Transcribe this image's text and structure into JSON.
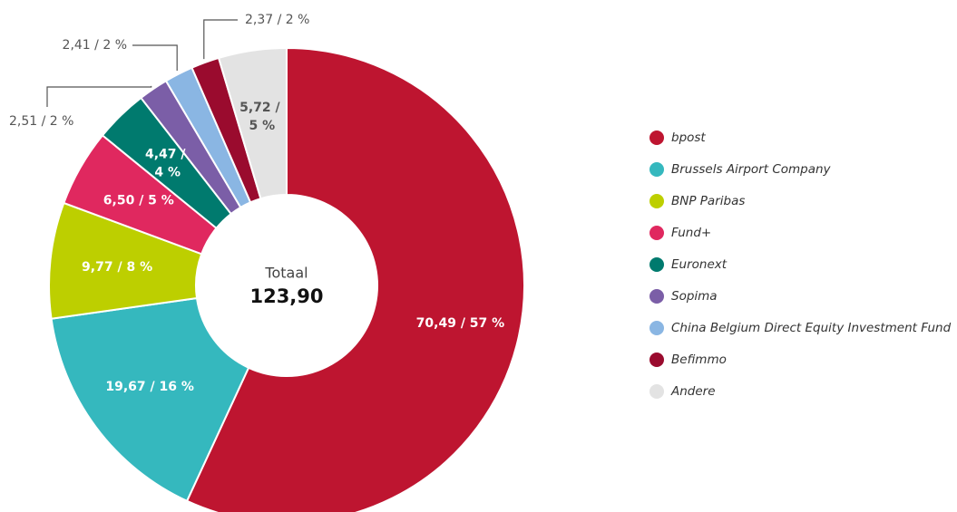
{
  "chart_data": {
    "type": "pie",
    "center_label": "Totaal",
    "total": "123,90",
    "categories": [
      "bpost",
      "Brussels Airport Company",
      "BNP Paribas",
      "Fund+",
      "Euronext",
      "Sopima",
      "China Belgium Direct Equity Investment Fund",
      "Befimmo",
      "Andere"
    ],
    "values": [
      70.49,
      19.67,
      9.77,
      6.5,
      4.47,
      2.51,
      2.41,
      2.37,
      5.72
    ],
    "value_labels": [
      "70,49 / 57 %",
      "19,67 / 16 %",
      "9,77 / 8 %",
      "6,50 / 5 %",
      "4,47 / 4 %",
      "2,51 / 2 %",
      "2,41 / 2 %",
      "2,37 / 2 %",
      "5,72 / 5 %"
    ],
    "colors": [
      "#be1530",
      "#35b8be",
      "#bdcf00",
      "#e0285f",
      "#007a6e",
      "#7b5ea7",
      "#8ab6e3",
      "#9a0b2e",
      "#e3e3e3"
    ],
    "legend": "right"
  }
}
